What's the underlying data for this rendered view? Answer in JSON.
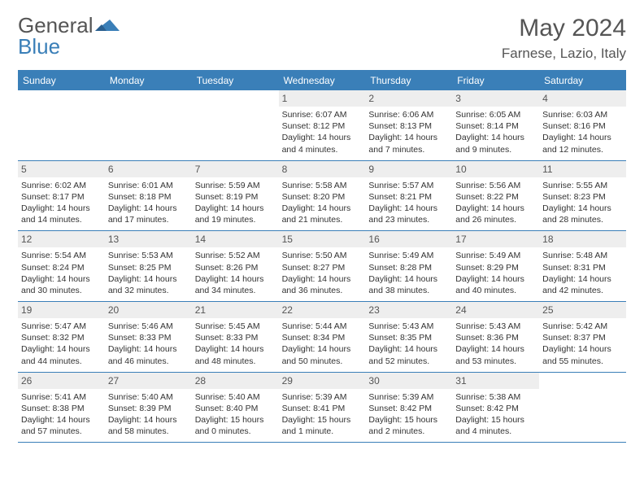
{
  "brand": {
    "part1": "General",
    "part2": "Blue"
  },
  "header": {
    "month_title": "May 2024",
    "location": "Farnese, Lazio, Italy"
  },
  "colors": {
    "brand_blue": "#3a7fb8",
    "text_gray": "#555555",
    "day_bg": "#eeeeee",
    "body_text": "#333333"
  },
  "day_labels": [
    "Sunday",
    "Monday",
    "Tuesday",
    "Wednesday",
    "Thursday",
    "Friday",
    "Saturday"
  ],
  "weeks": [
    [
      {
        "n": "",
        "sunrise": "",
        "sunset": "",
        "day1": "",
        "day2": ""
      },
      {
        "n": "",
        "sunrise": "",
        "sunset": "",
        "day1": "",
        "day2": ""
      },
      {
        "n": "",
        "sunrise": "",
        "sunset": "",
        "day1": "",
        "day2": ""
      },
      {
        "n": "1",
        "sunrise": "Sunrise: 6:07 AM",
        "sunset": "Sunset: 8:12 PM",
        "day1": "Daylight: 14 hours",
        "day2": "and 4 minutes."
      },
      {
        "n": "2",
        "sunrise": "Sunrise: 6:06 AM",
        "sunset": "Sunset: 8:13 PM",
        "day1": "Daylight: 14 hours",
        "day2": "and 7 minutes."
      },
      {
        "n": "3",
        "sunrise": "Sunrise: 6:05 AM",
        "sunset": "Sunset: 8:14 PM",
        "day1": "Daylight: 14 hours",
        "day2": "and 9 minutes."
      },
      {
        "n": "4",
        "sunrise": "Sunrise: 6:03 AM",
        "sunset": "Sunset: 8:16 PM",
        "day1": "Daylight: 14 hours",
        "day2": "and 12 minutes."
      }
    ],
    [
      {
        "n": "5",
        "sunrise": "Sunrise: 6:02 AM",
        "sunset": "Sunset: 8:17 PM",
        "day1": "Daylight: 14 hours",
        "day2": "and 14 minutes."
      },
      {
        "n": "6",
        "sunrise": "Sunrise: 6:01 AM",
        "sunset": "Sunset: 8:18 PM",
        "day1": "Daylight: 14 hours",
        "day2": "and 17 minutes."
      },
      {
        "n": "7",
        "sunrise": "Sunrise: 5:59 AM",
        "sunset": "Sunset: 8:19 PM",
        "day1": "Daylight: 14 hours",
        "day2": "and 19 minutes."
      },
      {
        "n": "8",
        "sunrise": "Sunrise: 5:58 AM",
        "sunset": "Sunset: 8:20 PM",
        "day1": "Daylight: 14 hours",
        "day2": "and 21 minutes."
      },
      {
        "n": "9",
        "sunrise": "Sunrise: 5:57 AM",
        "sunset": "Sunset: 8:21 PM",
        "day1": "Daylight: 14 hours",
        "day2": "and 23 minutes."
      },
      {
        "n": "10",
        "sunrise": "Sunrise: 5:56 AM",
        "sunset": "Sunset: 8:22 PM",
        "day1": "Daylight: 14 hours",
        "day2": "and 26 minutes."
      },
      {
        "n": "11",
        "sunrise": "Sunrise: 5:55 AM",
        "sunset": "Sunset: 8:23 PM",
        "day1": "Daylight: 14 hours",
        "day2": "and 28 minutes."
      }
    ],
    [
      {
        "n": "12",
        "sunrise": "Sunrise: 5:54 AM",
        "sunset": "Sunset: 8:24 PM",
        "day1": "Daylight: 14 hours",
        "day2": "and 30 minutes."
      },
      {
        "n": "13",
        "sunrise": "Sunrise: 5:53 AM",
        "sunset": "Sunset: 8:25 PM",
        "day1": "Daylight: 14 hours",
        "day2": "and 32 minutes."
      },
      {
        "n": "14",
        "sunrise": "Sunrise: 5:52 AM",
        "sunset": "Sunset: 8:26 PM",
        "day1": "Daylight: 14 hours",
        "day2": "and 34 minutes."
      },
      {
        "n": "15",
        "sunrise": "Sunrise: 5:50 AM",
        "sunset": "Sunset: 8:27 PM",
        "day1": "Daylight: 14 hours",
        "day2": "and 36 minutes."
      },
      {
        "n": "16",
        "sunrise": "Sunrise: 5:49 AM",
        "sunset": "Sunset: 8:28 PM",
        "day1": "Daylight: 14 hours",
        "day2": "and 38 minutes."
      },
      {
        "n": "17",
        "sunrise": "Sunrise: 5:49 AM",
        "sunset": "Sunset: 8:29 PM",
        "day1": "Daylight: 14 hours",
        "day2": "and 40 minutes."
      },
      {
        "n": "18",
        "sunrise": "Sunrise: 5:48 AM",
        "sunset": "Sunset: 8:31 PM",
        "day1": "Daylight: 14 hours",
        "day2": "and 42 minutes."
      }
    ],
    [
      {
        "n": "19",
        "sunrise": "Sunrise: 5:47 AM",
        "sunset": "Sunset: 8:32 PM",
        "day1": "Daylight: 14 hours",
        "day2": "and 44 minutes."
      },
      {
        "n": "20",
        "sunrise": "Sunrise: 5:46 AM",
        "sunset": "Sunset: 8:33 PM",
        "day1": "Daylight: 14 hours",
        "day2": "and 46 minutes."
      },
      {
        "n": "21",
        "sunrise": "Sunrise: 5:45 AM",
        "sunset": "Sunset: 8:33 PM",
        "day1": "Daylight: 14 hours",
        "day2": "and 48 minutes."
      },
      {
        "n": "22",
        "sunrise": "Sunrise: 5:44 AM",
        "sunset": "Sunset: 8:34 PM",
        "day1": "Daylight: 14 hours",
        "day2": "and 50 minutes."
      },
      {
        "n": "23",
        "sunrise": "Sunrise: 5:43 AM",
        "sunset": "Sunset: 8:35 PM",
        "day1": "Daylight: 14 hours",
        "day2": "and 52 minutes."
      },
      {
        "n": "24",
        "sunrise": "Sunrise: 5:43 AM",
        "sunset": "Sunset: 8:36 PM",
        "day1": "Daylight: 14 hours",
        "day2": "and 53 minutes."
      },
      {
        "n": "25",
        "sunrise": "Sunrise: 5:42 AM",
        "sunset": "Sunset: 8:37 PM",
        "day1": "Daylight: 14 hours",
        "day2": "and 55 minutes."
      }
    ],
    [
      {
        "n": "26",
        "sunrise": "Sunrise: 5:41 AM",
        "sunset": "Sunset: 8:38 PM",
        "day1": "Daylight: 14 hours",
        "day2": "and 57 minutes."
      },
      {
        "n": "27",
        "sunrise": "Sunrise: 5:40 AM",
        "sunset": "Sunset: 8:39 PM",
        "day1": "Daylight: 14 hours",
        "day2": "and 58 minutes."
      },
      {
        "n": "28",
        "sunrise": "Sunrise: 5:40 AM",
        "sunset": "Sunset: 8:40 PM",
        "day1": "Daylight: 15 hours",
        "day2": "and 0 minutes."
      },
      {
        "n": "29",
        "sunrise": "Sunrise: 5:39 AM",
        "sunset": "Sunset: 8:41 PM",
        "day1": "Daylight: 15 hours",
        "day2": "and 1 minute."
      },
      {
        "n": "30",
        "sunrise": "Sunrise: 5:39 AM",
        "sunset": "Sunset: 8:42 PM",
        "day1": "Daylight: 15 hours",
        "day2": "and 2 minutes."
      },
      {
        "n": "31",
        "sunrise": "Sunrise: 5:38 AM",
        "sunset": "Sunset: 8:42 PM",
        "day1": "Daylight: 15 hours",
        "day2": "and 4 minutes."
      },
      {
        "n": "",
        "sunrise": "",
        "sunset": "",
        "day1": "",
        "day2": ""
      }
    ]
  ]
}
